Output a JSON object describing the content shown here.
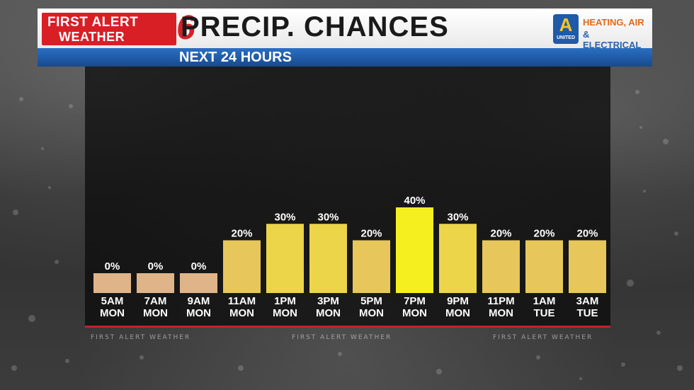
{
  "header": {
    "logo_line1": "FIRST ALERT",
    "logo_line2": "WEATHER",
    "logo_number": "6",
    "title": "PRECIP. CHANCES",
    "subtitle": "NEXT 24 HOURS"
  },
  "sponsor": {
    "badge_letter": "A",
    "badge_word": "UNITED",
    "line1": "HEATING, AIR",
    "line2": "& ELECTRICAL"
  },
  "watermark": "FIRST ALERT WEATHER",
  "colors": {
    "low": "#e0b489",
    "mid": "#e7c75b",
    "high": "#f2e33a",
    "peak": "#f6ef1f",
    "baseline": "#c8202a",
    "subbar": "#1f5aa8"
  },
  "chart_data": {
    "type": "bar",
    "categories": [
      [
        "5AM",
        "MON"
      ],
      [
        "7AM",
        "MON"
      ],
      [
        "9AM",
        "MON"
      ],
      [
        "11AM",
        "MON"
      ],
      [
        "1PM",
        "MON"
      ],
      [
        "3PM",
        "MON"
      ],
      [
        "5PM",
        "MON"
      ],
      [
        "7PM",
        "MON"
      ],
      [
        "9PM",
        "MON"
      ],
      [
        "11PM",
        "MON"
      ],
      [
        "1AM",
        "TUE"
      ],
      [
        "3AM",
        "TUE"
      ]
    ],
    "values": [
      0,
      0,
      0,
      20,
      30,
      30,
      20,
      40,
      30,
      20,
      20,
      20
    ],
    "value_labels": [
      "0%",
      "0%",
      "0%",
      "20%",
      "30%",
      "30%",
      "20%",
      "40%",
      "30%",
      "20%",
      "20%",
      "20%"
    ],
    "ylim": [
      0,
      100
    ],
    "grid": false,
    "legend": "none"
  }
}
